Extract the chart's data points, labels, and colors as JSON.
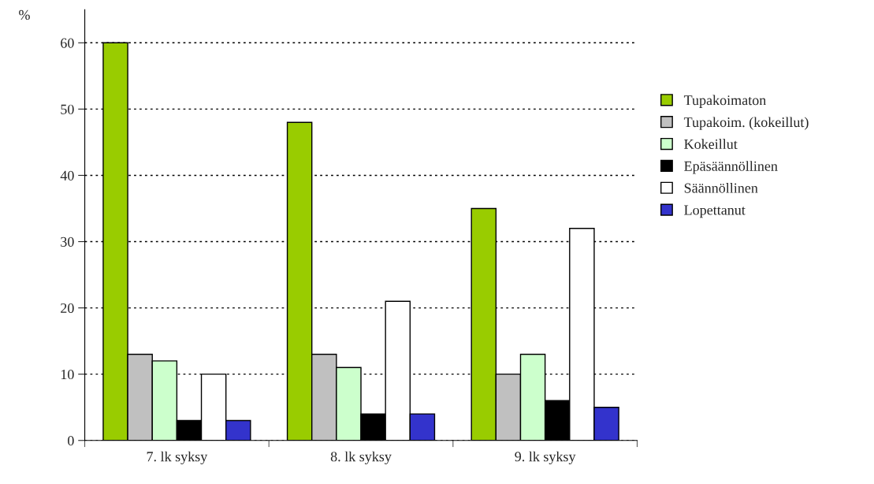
{
  "chart_data": {
    "type": "bar",
    "ylabel": "%",
    "categories": [
      "7. lk syksy",
      "8. lk syksy",
      "9. lk syksy"
    ],
    "series": [
      {
        "name": "Tupakoimaton",
        "color": "#99cc00",
        "values": [
          60,
          48,
          35
        ]
      },
      {
        "name": "Tupakoim. (kokeillut)",
        "color": "#c0c0c0",
        "values": [
          13,
          13,
          10
        ]
      },
      {
        "name": "Kokeillut",
        "color": "#ccffcc",
        "values": [
          12,
          11,
          13
        ]
      },
      {
        "name": "Epäsäännöllinen",
        "color": "#000000",
        "values": [
          3,
          4,
          6
        ]
      },
      {
        "name": "Säännöllinen",
        "color": "#ffffff",
        "values": [
          10,
          21,
          32
        ]
      },
      {
        "name": "Lopettanut",
        "color": "#3333cc",
        "values": [
          3,
          4,
          5
        ]
      }
    ],
    "ylim": [
      0,
      65
    ],
    "yticks": [
      0,
      10,
      20,
      30,
      40,
      50,
      60
    ],
    "grid": "y",
    "legend": "right"
  }
}
